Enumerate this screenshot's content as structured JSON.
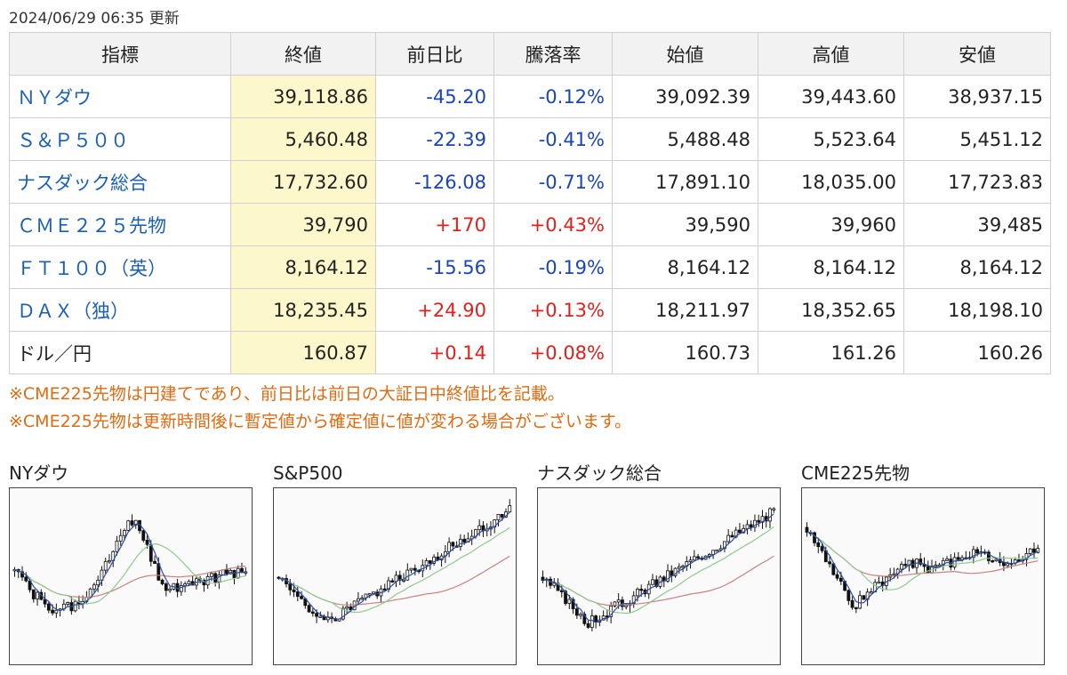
{
  "updated": "2024/06/29 06:35 更新",
  "table": {
    "headers": [
      "指標",
      "終値",
      "前日比",
      "騰落率",
      "始値",
      "高値",
      "安値"
    ],
    "rows": [
      {
        "name": "ＮＹダウ",
        "close": "39,118.86",
        "change": "-45.20",
        "rate": "-0.12%",
        "open": "39,092.39",
        "high": "39,443.60",
        "low": "38,937.15",
        "dir": "neg",
        "link": true
      },
      {
        "name": "Ｓ＆Ｐ５００",
        "close": "5,460.48",
        "change": "-22.39",
        "rate": "-0.41%",
        "open": "5,488.48",
        "high": "5,523.64",
        "low": "5,451.12",
        "dir": "neg",
        "link": true
      },
      {
        "name": "ナスダック総合",
        "close": "17,732.60",
        "change": "-126.08",
        "rate": "-0.71%",
        "open": "17,891.10",
        "high": "18,035.00",
        "low": "17,723.83",
        "dir": "neg",
        "link": true
      },
      {
        "name": "ＣＭＥ２２５先物",
        "close": "39,790",
        "change": "+170",
        "rate": "+0.43%",
        "open": "39,590",
        "high": "39,960",
        "low": "39,485",
        "dir": "pos",
        "link": true
      },
      {
        "name": "ＦＴ１００（英）",
        "close": "8,164.12",
        "change": "-15.56",
        "rate": "-0.19%",
        "open": "8,164.12",
        "high": "8,164.12",
        "low": "8,164.12",
        "dir": "neg",
        "link": true
      },
      {
        "name": "ＤＡＸ（独）",
        "close": "18,235.45",
        "change": "+24.90",
        "rate": "+0.13%",
        "open": "18,211.97",
        "high": "18,352.65",
        "low": "18,198.10",
        "dir": "pos",
        "link": true
      },
      {
        "name": "ドル／円",
        "close": "160.87",
        "change": "+0.14",
        "rate": "+0.08%",
        "open": "160.73",
        "high": "161.26",
        "low": "160.26",
        "dir": "pos",
        "link": false
      }
    ]
  },
  "notes": [
    "※CME225先物は円建てであり、前日比は前日の大証日中終値比を記載。",
    "※CME225先物は更新時間後に暫定値から確定値に値が変わる場合がございます。"
  ],
  "charts": [
    {
      "title": "NYダウ"
    },
    {
      "title": "S&P500"
    },
    {
      "title": "ナスダック総合"
    },
    {
      "title": "CME225先物"
    }
  ],
  "colors": {
    "up": "#e0201c",
    "down": "#1a44b8",
    "close_highlight": "#fdf7cc",
    "note": "#e06a10",
    "link": "#1a5fb4",
    "ma_short": "#2b4ea2",
    "ma_mid": "#8fc98f",
    "ma_long": "#c98080"
  }
}
